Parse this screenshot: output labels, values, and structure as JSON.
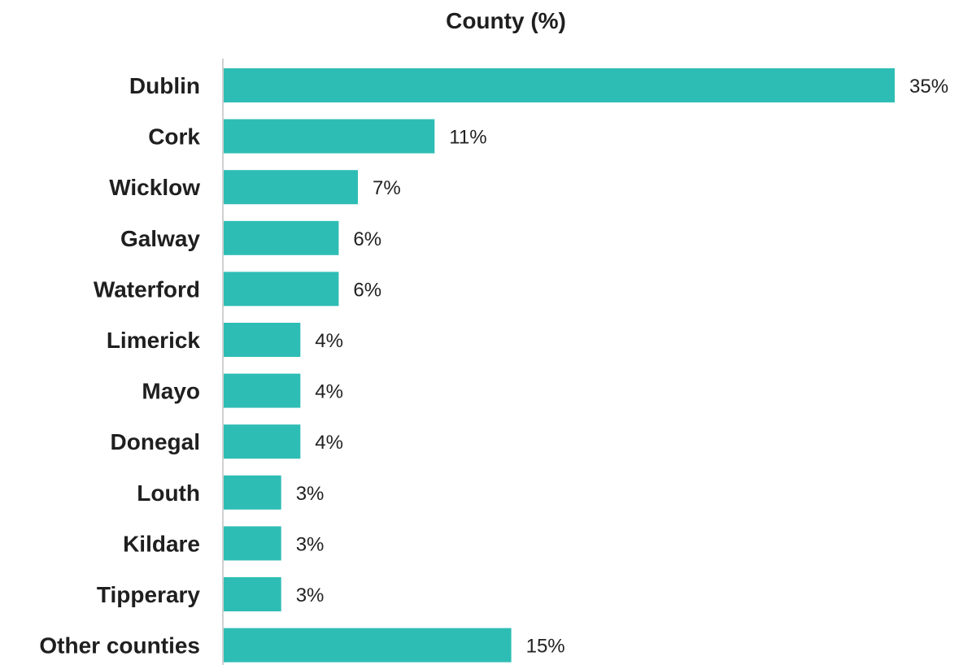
{
  "chart_data": {
    "type": "bar",
    "orientation": "horizontal",
    "title": "County (%)",
    "categories": [
      "Dublin",
      "Cork",
      "Wicklow",
      "Galway",
      "Waterford",
      "Limerick",
      "Mayo",
      "Donegal",
      "Louth",
      "Kildare",
      "Tipperary",
      "Other counties"
    ],
    "values": [
      35,
      11,
      7,
      6,
      6,
      4,
      4,
      4,
      3,
      3,
      3,
      15
    ],
    "value_labels": [
      "35%",
      "11%",
      "7%",
      "6%",
      "6%",
      "4%",
      "4%",
      "4%",
      "3%",
      "3%",
      "3%",
      "15%"
    ],
    "xlabel": "",
    "ylabel": "",
    "grid": false,
    "legend": "none",
    "bar_color": "#2ebdb5",
    "axis_color": "#d0d0d0"
  }
}
